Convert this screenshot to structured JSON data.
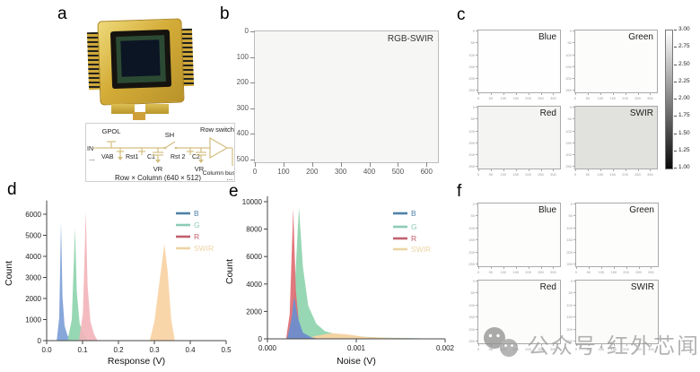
{
  "panels": {
    "a": {
      "label": "a",
      "circuit": {
        "labels": {
          "gpol": "GPOL",
          "in": "IN",
          "ellipsis_left": "...",
          "vab": "VAB",
          "rst1": "Rst1",
          "c1": "C1",
          "sh": "SH",
          "rst2": "Rst 2",
          "c2": "C2",
          "vr_left": "VR",
          "vr_right": "VR",
          "row_switch": "Row switch",
          "column_bus": "Column bus",
          "ellipsis_right": "...",
          "caption": "Row × Column (640 × 512)"
        }
      }
    },
    "b": {
      "label": "b",
      "title": "RGB-SWIR",
      "yticks": [
        "0",
        "100",
        "200",
        "300",
        "400",
        "500"
      ],
      "xticks": [
        "0",
        "100",
        "200",
        "300",
        "400",
        "500",
        "600"
      ]
    },
    "c": {
      "label": "c",
      "yticks": [
        "0",
        "50",
        "100",
        "150",
        "200",
        "250"
      ],
      "xticks": [
        "0",
        "50",
        "100",
        "150",
        "200",
        "250",
        "300"
      ],
      "subpanels": [
        {
          "name": "Blue",
          "bg": "#fefefe"
        },
        {
          "name": "Green",
          "bg": "#fcfcfb"
        },
        {
          "name": "Red",
          "bg": "#f4f4f2"
        },
        {
          "name": "SWIR",
          "bg": "#e1e1de"
        }
      ],
      "colorbar": {
        "ticks": [
          "3.00",
          "2.75",
          "2.50",
          "2.25",
          "2.00",
          "1.75",
          "1.50",
          "1.25",
          "1.00"
        ],
        "top_color": "#ffffff",
        "bottom_color": "#0a0a0a"
      }
    },
    "d": {
      "label": "d"
    },
    "e": {
      "label": "e"
    },
    "f": {
      "label": "f",
      "yticks": [
        "0",
        "50",
        "100",
        "150",
        "200",
        "250"
      ],
      "xticks": [
        "0",
        "50",
        "100",
        "150",
        "200",
        "250",
        "300"
      ],
      "subpanels": [
        {
          "name": "Blue",
          "bg": "#fdfdfc"
        },
        {
          "name": "Green",
          "bg": "#fdfdfc"
        },
        {
          "name": "Red",
          "bg": "#fcfcfa"
        },
        {
          "name": "SWIR",
          "bg": "#fbfbf9"
        }
      ]
    }
  },
  "watermark": {
    "text": "公众号·红外芯闻"
  },
  "chart_data": [
    {
      "id": "d",
      "type": "area",
      "title": "",
      "xlabel": "Response (V)",
      "ylabel": "Count",
      "xlim": [
        0,
        0.5
      ],
      "ylim": [
        0,
        6400
      ],
      "xticks": [
        0,
        0.1,
        0.2,
        0.3,
        0.4,
        0.5
      ],
      "xtick_labels": [
        "0.0",
        "0.1",
        "0.2",
        "0.3",
        "0.4",
        "0.5"
      ],
      "yticks": [
        0,
        1000,
        2000,
        3000,
        4000,
        5000,
        6000
      ],
      "ytick_labels": [
        "0",
        "1000",
        "2000",
        "3000",
        "4000",
        "5000",
        "6000"
      ],
      "legend_position": "top-right",
      "draw_order": [
        0,
        1,
        2,
        3
      ],
      "series": [
        {
          "name": "B",
          "line_color": "#4f81a8",
          "fill_color": "#7da0d8",
          "points": [
            [
              0.028,
              0
            ],
            [
              0.035,
              1100
            ],
            [
              0.04,
              5650
            ],
            [
              0.044,
              2100
            ],
            [
              0.05,
              700
            ],
            [
              0.058,
              250
            ],
            [
              0.068,
              0
            ]
          ]
        },
        {
          "name": "G",
          "line_color": "#8ccbb4",
          "fill_color": "#8fd4ae",
          "points": [
            [
              0.058,
              0
            ],
            [
              0.07,
              1000
            ],
            [
              0.079,
              5350
            ],
            [
              0.084,
              2300
            ],
            [
              0.092,
              800
            ],
            [
              0.103,
              300
            ],
            [
              0.115,
              0
            ]
          ]
        },
        {
          "name": "R",
          "line_color": "#c2606e",
          "fill_color": "#f2b5bb",
          "points": [
            [
              0.09,
              0
            ],
            [
              0.101,
              1300
            ],
            [
              0.109,
              6150
            ],
            [
              0.114,
              2600
            ],
            [
              0.122,
              900
            ],
            [
              0.132,
              300
            ],
            [
              0.142,
              0
            ]
          ]
        },
        {
          "name": "SWIR",
          "line_color": "#ecd4a4",
          "fill_color": "#f8d2a3",
          "points": [
            [
              0.287,
              0
            ],
            [
              0.3,
              900
            ],
            [
              0.312,
              2500
            ],
            [
              0.328,
              4600
            ],
            [
              0.337,
              3300
            ],
            [
              0.347,
              1000
            ],
            [
              0.357,
              0
            ]
          ]
        }
      ]
    },
    {
      "id": "e",
      "type": "area",
      "title": "",
      "xlabel": "Noise (V)",
      "ylabel": "Count",
      "xlim": [
        0,
        0.002
      ],
      "ylim": [
        0,
        10000
      ],
      "xticks": [
        0,
        0.001,
        0.002
      ],
      "xtick_labels": [
        "0.000",
        "0.001",
        "0.002"
      ],
      "yticks": [
        0,
        2000,
        4000,
        6000,
        8000,
        10000
      ],
      "ytick_labels": [
        "0",
        "2000",
        "4000",
        "6000",
        "8000",
        "10000"
      ],
      "legend_position": "top-right",
      "draw_order": [
        1,
        3,
        2,
        0
      ],
      "series": [
        {
          "name": "B",
          "line_color": "#4f81a8",
          "fill_color": "#6a8fd0",
          "points": [
            [
              0.00022,
              0
            ],
            [
              0.00027,
              1400
            ],
            [
              0.0003,
              3100
            ],
            [
              0.00034,
              1600
            ],
            [
              0.0004,
              450
            ],
            [
              0.0005,
              100
            ],
            [
              0.00058,
              0
            ]
          ]
        },
        {
          "name": "G",
          "line_color": "#8ccbb4",
          "fill_color": "#8fd4ae",
          "points": [
            [
              0.00024,
              0
            ],
            [
              0.0003,
              2800
            ],
            [
              0.000355,
              9600
            ],
            [
              0.0004,
              5200
            ],
            [
              0.00046,
              2400
            ],
            [
              0.00055,
              1100
            ],
            [
              0.00065,
              550
            ],
            [
              0.0008,
              300
            ],
            [
              0.001,
              180
            ],
            [
              0.0013,
              90
            ],
            [
              0.0017,
              40
            ],
            [
              0.002,
              0
            ]
          ]
        },
        {
          "name": "R",
          "line_color": "#c2606e",
          "fill_color": "#e06c72",
          "points": [
            [
              0.00021,
              0
            ],
            [
              0.00025,
              1800
            ],
            [
              0.00029,
              9500
            ],
            [
              0.00032,
              3500
            ],
            [
              0.00036,
              800
            ],
            [
              0.00043,
              150
            ],
            [
              0.00052,
              0
            ]
          ]
        },
        {
          "name": "SWIR",
          "line_color": "#ecd4a4",
          "fill_color": "#f8d2a3",
          "points": [
            [
              0.0004,
              0
            ],
            [
              0.00055,
              220
            ],
            [
              0.00072,
              420
            ],
            [
              0.0009,
              330
            ],
            [
              0.0011,
              140
            ],
            [
              0.0014,
              60
            ],
            [
              0.002,
              0
            ]
          ]
        }
      ]
    }
  ]
}
